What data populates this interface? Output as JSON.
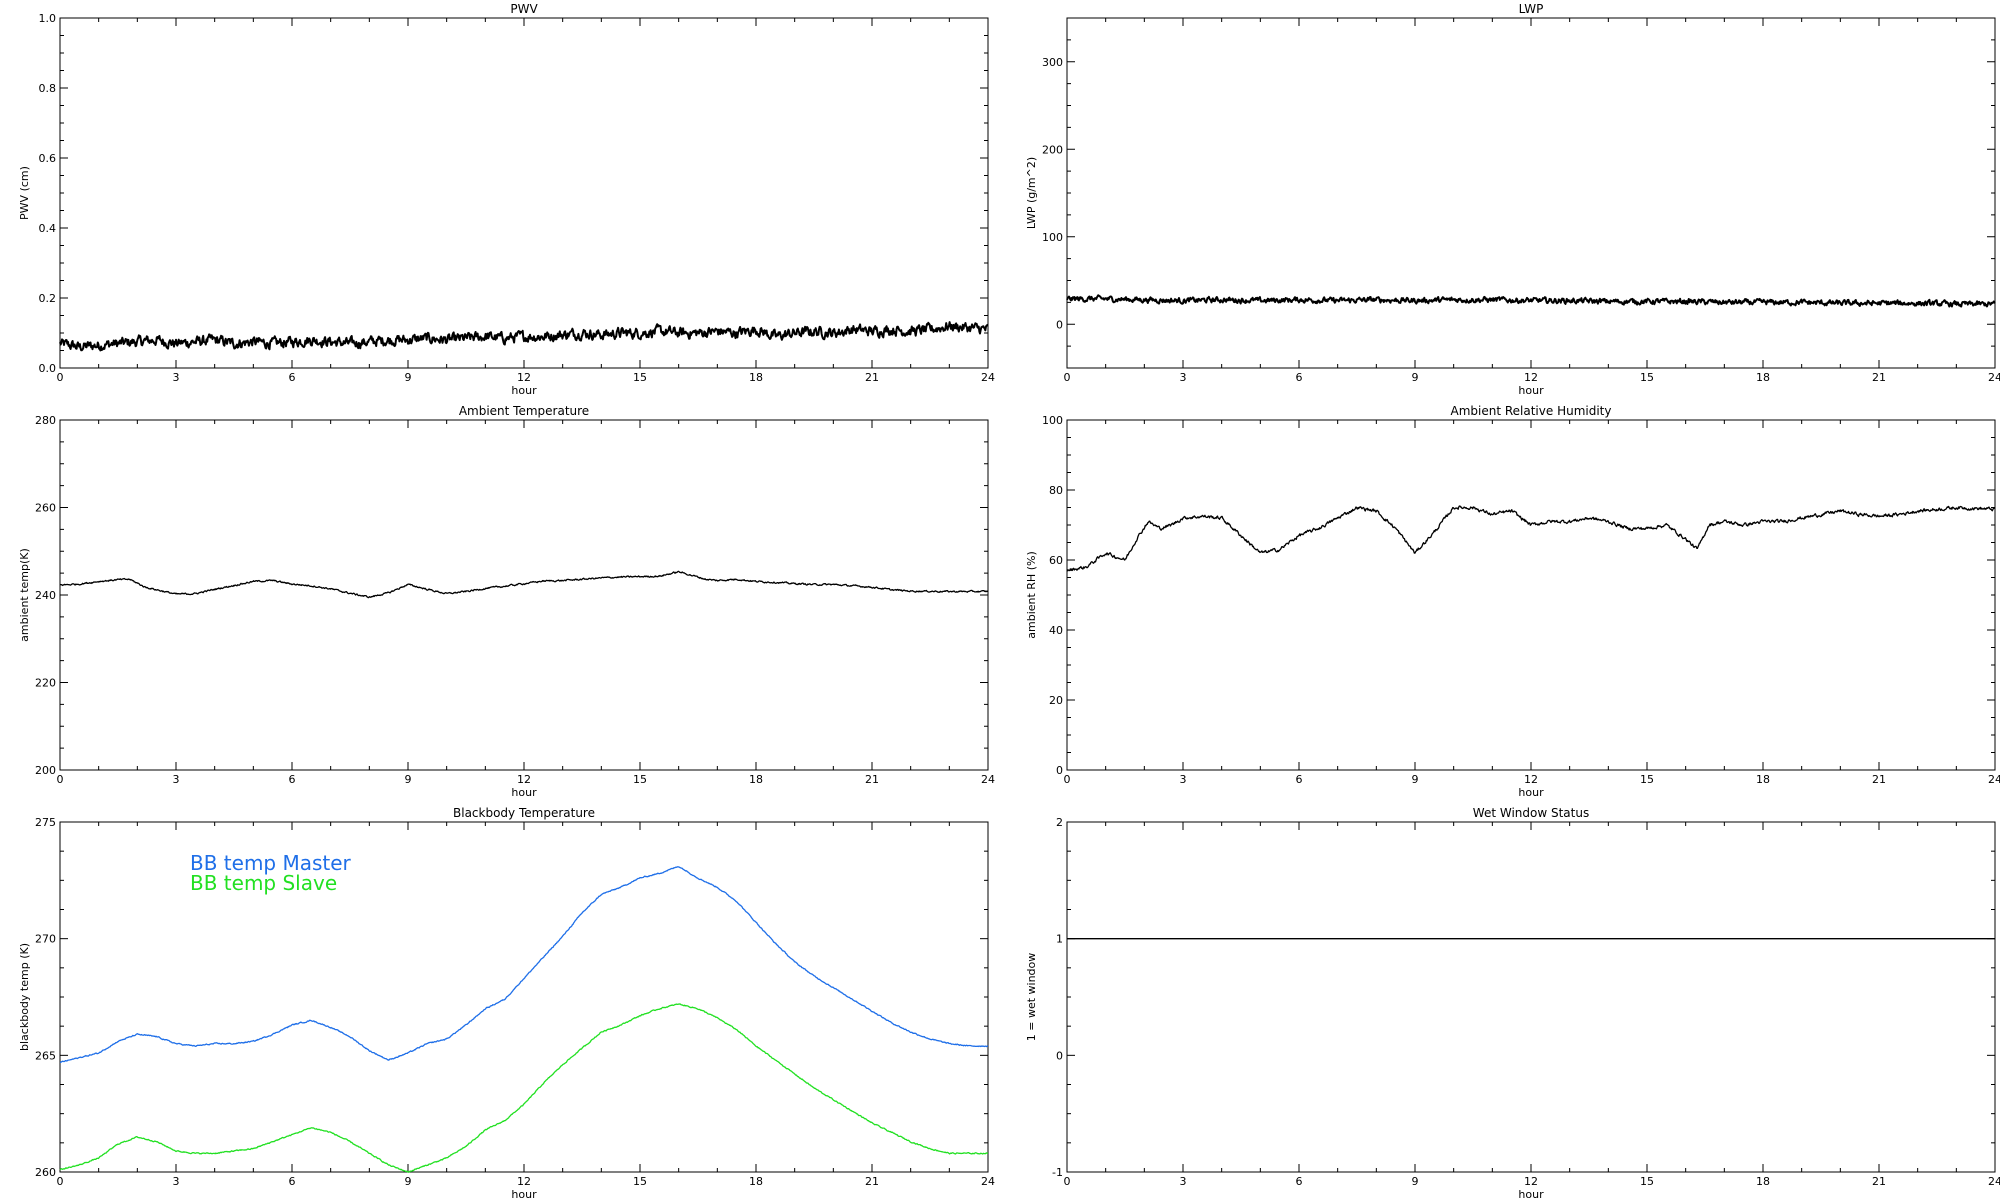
{
  "chart_data": [
    {
      "type": "line",
      "title": "PWV",
      "xlabel": "hour",
      "ylabel": "PWV (cm)",
      "xlim": [
        0,
        24
      ],
      "ylim": [
        0,
        1
      ],
      "xticks": [
        "0",
        "3",
        "6",
        "9",
        "12",
        "15",
        "18",
        "21",
        "24"
      ],
      "yticks": [
        "0.0",
        "0.2",
        "0.4",
        "0.6",
        "0.8",
        "1.0"
      ],
      "legend": [],
      "series": [
        {
          "name": "",
          "color": "#000000",
          "noise": 0.012,
          "x": [
            0,
            0.5,
            1,
            1.5,
            2,
            2.5,
            3,
            3.5,
            4,
            4.5,
            5,
            5.5,
            6,
            6.5,
            7,
            7.5,
            8,
            8.5,
            9,
            9.5,
            10,
            10.5,
            11,
            11.5,
            12,
            12.5,
            13,
            13.5,
            14,
            14.5,
            15,
            15.5,
            16,
            16.5,
            17,
            17.5,
            18,
            18.5,
            19,
            19.5,
            20,
            20.5,
            21,
            21.5,
            22,
            22.5,
            23,
            23.5,
            24
          ],
          "y": [
            0.07,
            0.06,
            0.065,
            0.07,
            0.075,
            0.08,
            0.07,
            0.075,
            0.08,
            0.07,
            0.075,
            0.07,
            0.075,
            0.08,
            0.075,
            0.07,
            0.075,
            0.08,
            0.08,
            0.085,
            0.08,
            0.085,
            0.09,
            0.085,
            0.09,
            0.09,
            0.095,
            0.1,
            0.095,
            0.1,
            0.1,
            0.105,
            0.1,
            0.1,
            0.105,
            0.1,
            0.11,
            0.09,
            0.1,
            0.105,
            0.1,
            0.11,
            0.105,
            0.11,
            0.105,
            0.11,
            0.12,
            0.115,
            0.11
          ]
        }
      ]
    },
    {
      "type": "line",
      "title": "LWP",
      "xlabel": "hour",
      "ylabel": "LWP (g/m^2)",
      "xlim": [
        0,
        24
      ],
      "ylim": [
        -50,
        350
      ],
      "xticks": [
        "0",
        "3",
        "6",
        "9",
        "12",
        "15",
        "18",
        "21",
        "24"
      ],
      "yticks": [
        "0",
        "100",
        "200",
        "300"
      ],
      "legend": [],
      "series": [
        {
          "name": "",
          "color": "#000000",
          "noise": 2.5,
          "x": [
            0,
            1,
            2,
            3,
            4,
            5,
            6,
            7,
            8,
            9,
            10,
            11,
            12,
            13,
            14,
            15,
            16,
            17,
            18,
            19,
            20,
            21,
            22,
            23,
            24
          ],
          "y": [
            29,
            29,
            28,
            27,
            28,
            27,
            28,
            27,
            28,
            27,
            28,
            28,
            27,
            27,
            26,
            26,
            26,
            25,
            25,
            25,
            24,
            24,
            24,
            23,
            23
          ]
        }
      ]
    },
    {
      "type": "line",
      "title": "Ambient Temperature",
      "xlabel": "hour",
      "ylabel": "ambient temp(K)",
      "xlim": [
        0,
        24
      ],
      "ylim": [
        200,
        280
      ],
      "xticks": [
        "0",
        "3",
        "6",
        "9",
        "12",
        "15",
        "18",
        "21",
        "24"
      ],
      "yticks": [
        "200",
        "220",
        "240",
        "260",
        "280"
      ],
      "legend": [],
      "series": [
        {
          "name": "",
          "color": "#000000",
          "noise": 0.15,
          "x": [
            0,
            0.5,
            1,
            1.5,
            1.8,
            2.2,
            2.6,
            3,
            3.5,
            4,
            4.5,
            5,
            5.5,
            6,
            6.5,
            7,
            7.5,
            8,
            8.5,
            9,
            9.5,
            10,
            10.5,
            11,
            11.5,
            12,
            12.5,
            13,
            13.5,
            14,
            14.5,
            15,
            15.5,
            16,
            16.3,
            16.7,
            17,
            17.5,
            18,
            18.5,
            19,
            19.5,
            20,
            20.5,
            21,
            21.5,
            22,
            23,
            24
          ],
          "y": [
            242.3,
            242.5,
            243.1,
            243.5,
            243.6,
            241.8,
            241,
            240.2,
            240.3,
            241.3,
            242.2,
            243.1,
            243.3,
            242.5,
            242.1,
            241.4,
            240.4,
            239.5,
            240.5,
            242.4,
            241.3,
            240.3,
            240.8,
            241.5,
            242,
            242.6,
            243.2,
            243.3,
            243.6,
            243.9,
            244.1,
            244.2,
            244.3,
            245.3,
            244.6,
            243.6,
            243.3,
            243.6,
            243.1,
            242.9,
            242.6,
            242.4,
            242.4,
            242.1,
            241.8,
            241.2,
            240.9,
            240.8,
            240.8
          ]
        }
      ]
    },
    {
      "type": "line",
      "title": "Ambient Relative Humidity",
      "xlabel": "hour",
      "ylabel": "ambient RH (%)",
      "xlim": [
        0,
        24
      ],
      "ylim": [
        0,
        100
      ],
      "xticks": [
        "0",
        "3",
        "6",
        "9",
        "12",
        "15",
        "18",
        "21",
        "24"
      ],
      "yticks": [
        "0",
        "20",
        "40",
        "60",
        "80",
        "100"
      ],
      "legend": [],
      "series": [
        {
          "name": "",
          "color": "#000000",
          "noise": 0.4,
          "x": [
            0,
            0.5,
            1,
            1.5,
            1.8,
            2.1,
            2.4,
            2.7,
            3,
            3.5,
            4,
            4.5,
            5,
            5.5,
            6,
            6.5,
            7,
            7.5,
            8,
            8.5,
            9,
            9.5,
            10,
            10.5,
            11,
            11.5,
            12,
            12.5,
            13,
            13.5,
            14,
            14.5,
            15,
            15.5,
            16,
            16.3,
            16.6,
            17,
            17.5,
            18,
            18.5,
            19,
            19.5,
            20,
            20.5,
            21,
            21.5,
            22,
            23,
            24
          ],
          "y": [
            57,
            58,
            62,
            60,
            66,
            71,
            69,
            70,
            72,
            72.5,
            72,
            67,
            62,
            63,
            67,
            69,
            72,
            75,
            74,
            69,
            62,
            68,
            75,
            75,
            73,
            74,
            70,
            71,
            71,
            72,
            71,
            69,
            69,
            70,
            66,
            63,
            70,
            71,
            70,
            71,
            71,
            72,
            73,
            74,
            73,
            72.5,
            73,
            74,
            75,
            74.5
          ]
        }
      ]
    },
    {
      "type": "line",
      "title": "Blackbody Temperature",
      "xlabel": "hour",
      "ylabel": "blackbody temp (K)",
      "xlim": [
        0,
        24
      ],
      "ylim": [
        260,
        275
      ],
      "xticks": [
        "0",
        "3",
        "6",
        "9",
        "12",
        "15",
        "18",
        "21",
        "24"
      ],
      "yticks": [
        "260",
        "265",
        "270",
        "275"
      ],
      "legend": [
        "BB temp Master",
        "BB temp Slave"
      ],
      "series": [
        {
          "name": "BB temp Master",
          "color": "#1f6fe8",
          "noise": 0.02,
          "x": [
            0,
            0.5,
            1,
            1.5,
            2,
            2.5,
            3,
            3.5,
            4,
            4.5,
            5,
            5.5,
            6,
            6.5,
            7,
            7.5,
            8,
            8.5,
            9,
            9.5,
            10,
            10.5,
            11,
            11.5,
            12,
            12.5,
            13,
            13.5,
            14,
            14.5,
            15,
            15.5,
            16,
            16.5,
            17,
            17.5,
            18,
            18.5,
            19,
            19.5,
            20,
            20.5,
            21,
            21.5,
            22,
            22.5,
            23,
            23.5,
            24
          ],
          "y": [
            264.7,
            264.9,
            265.1,
            265.6,
            265.9,
            265.8,
            265.5,
            265.4,
            265.5,
            265.5,
            265.6,
            265.9,
            266.3,
            266.5,
            266.2,
            265.8,
            265.2,
            264.8,
            265.1,
            265.5,
            265.7,
            266.3,
            267,
            267.4,
            268.3,
            269.2,
            270.1,
            271.1,
            271.9,
            272.2,
            272.6,
            272.8,
            273.1,
            272.6,
            272.2,
            271.6,
            270.7,
            269.8,
            269,
            268.4,
            267.9,
            267.4,
            266.9,
            266.4,
            266,
            265.7,
            265.5,
            265.4,
            265.4
          ]
        },
        {
          "name": "BB temp Slave",
          "color": "#22e022",
          "noise": 0.02,
          "x": [
            0,
            0.5,
            1,
            1.5,
            2,
            2.5,
            3,
            3.5,
            4,
            4.5,
            5,
            5.5,
            6,
            6.5,
            7,
            7.5,
            8,
            8.5,
            9,
            9.5,
            10,
            10.5,
            11,
            11.5,
            12,
            12.5,
            13,
            13.5,
            14,
            14.5,
            15,
            15.5,
            16,
            16.5,
            17,
            17.5,
            18,
            18.5,
            19,
            19.5,
            20,
            20.5,
            21,
            21.5,
            22,
            22.5,
            23,
            23.5,
            24
          ],
          "y": [
            260.1,
            260.3,
            260.6,
            261.2,
            261.5,
            261.3,
            260.9,
            260.8,
            260.8,
            260.9,
            261,
            261.3,
            261.6,
            261.9,
            261.7,
            261.3,
            260.8,
            260.3,
            260,
            260.3,
            260.6,
            261.1,
            261.8,
            262.2,
            262.9,
            263.8,
            264.6,
            265.3,
            266,
            266.3,
            266.7,
            267,
            267.2,
            267,
            266.6,
            266.1,
            265.4,
            264.8,
            264.2,
            263.6,
            263.1,
            262.6,
            262.1,
            261.7,
            261.3,
            261,
            260.8,
            260.8,
            260.8
          ]
        }
      ]
    },
    {
      "type": "line",
      "title": "Wet Window Status",
      "xlabel": "hour",
      "ylabel": "1 = wet window",
      "xlim": [
        0,
        24
      ],
      "ylim": [
        -1,
        2
      ],
      "xticks": [
        "0",
        "3",
        "6",
        "9",
        "12",
        "15",
        "18",
        "21",
        "24"
      ],
      "yticks": [
        "-1",
        "0",
        "1",
        "2"
      ],
      "legend": [],
      "series": [
        {
          "name": "",
          "color": "#000000",
          "noise": 0,
          "x": [
            0,
            24
          ],
          "y": [
            1,
            1
          ]
        }
      ]
    }
  ]
}
